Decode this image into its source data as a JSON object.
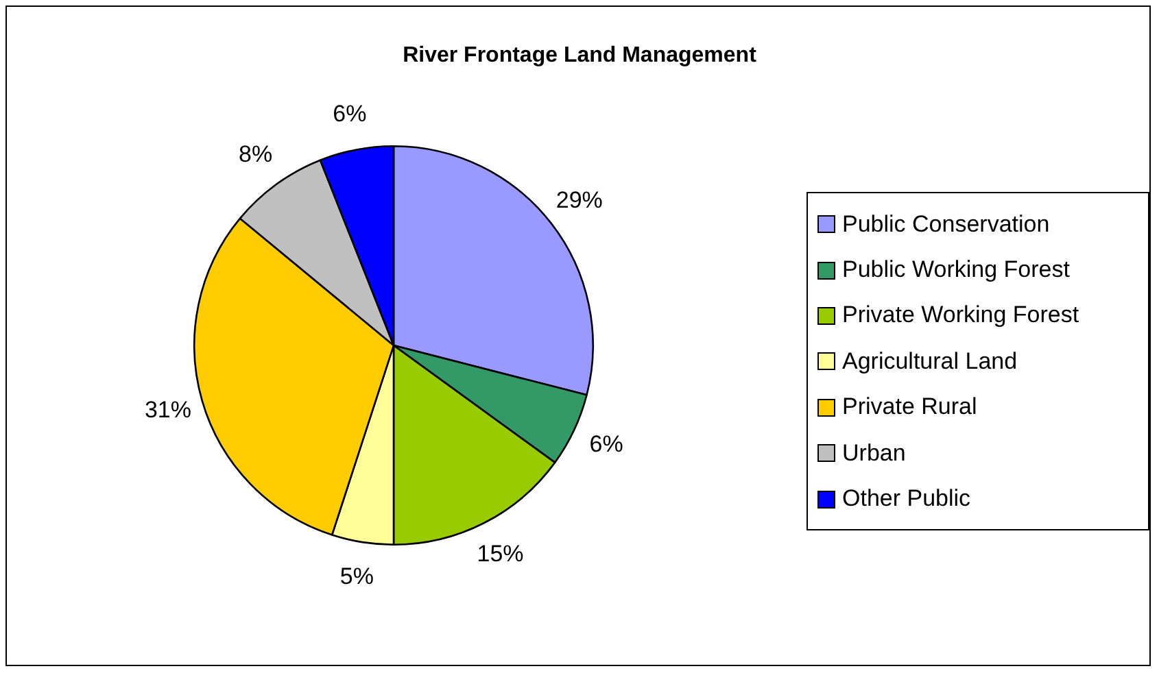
{
  "chart_data": {
    "type": "pie",
    "title": "River Frontage Land Management",
    "categories": [
      "Public Conservation",
      "Public Working Forest",
      "Private Working Forest",
      "Agricultural Land",
      "Private Rural",
      "Urban",
      "Other Public"
    ],
    "values": [
      29,
      6,
      15,
      5,
      31,
      8,
      6
    ],
    "colors": [
      "#9999ff",
      "#339966",
      "#99cc00",
      "#ffff99",
      "#ffcc00",
      "#c0c0c0",
      "#0000ff"
    ],
    "value_labels": [
      "29%",
      "6%",
      "15%",
      "5%",
      "31%",
      "8%",
      "6%"
    ],
    "legend": "right"
  }
}
